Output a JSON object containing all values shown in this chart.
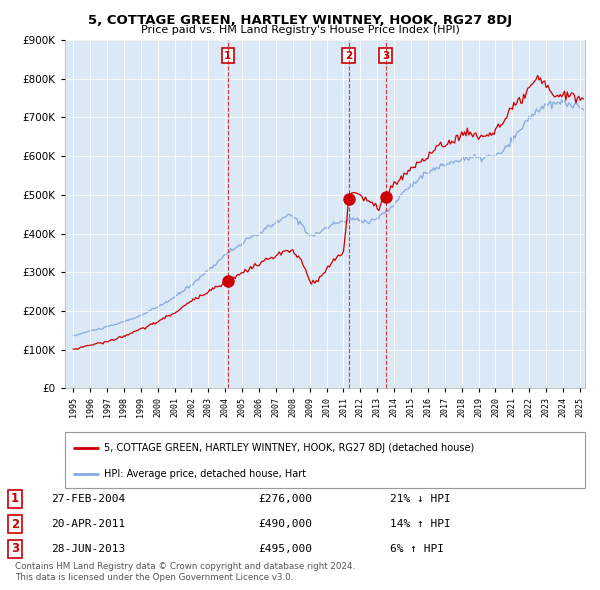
{
  "title": "5, COTTAGE GREEN, HARTLEY WINTNEY, HOOK, RG27 8DJ",
  "subtitle": "Price paid vs. HM Land Registry's House Price Index (HPI)",
  "legend_red": "5, COTTAGE GREEN, HARTLEY WINTNEY, HOOK, RG27 8DJ (detached house)",
  "legend_blue": "HPI: Average price, detached house, Hart",
  "footer1": "Contains HM Land Registry data © Crown copyright and database right 2024.",
  "footer2": "This data is licensed under the Open Government Licence v3.0.",
  "transactions": [
    {
      "num": 1,
      "date": "27-FEB-2004",
      "date_val": 2004.15,
      "price": 276000,
      "pct": "21%",
      "dir": "↓"
    },
    {
      "num": 2,
      "date": "20-APR-2011",
      "date_val": 2011.3,
      "price": 490000,
      "pct": "14%",
      "dir": "↑"
    },
    {
      "num": 3,
      "date": "28-JUN-2013",
      "date_val": 2013.49,
      "price": 495000,
      "pct": "6%",
      "dir": "↑"
    }
  ],
  "red_color": "#cc0000",
  "blue_color": "#88aadd",
  "bg_color": "#dbe8f5",
  "ylim": [
    0,
    900000
  ],
  "xlim_start": 1994.5,
  "xlim_end": 2025.3,
  "blue_anchors": [
    [
      1995.0,
      135000
    ],
    [
      1996.0,
      148000
    ],
    [
      1997.0,
      158000
    ],
    [
      1998.0,
      172000
    ],
    [
      1999.0,
      188000
    ],
    [
      2000.0,
      210000
    ],
    [
      2001.0,
      235000
    ],
    [
      2002.0,
      268000
    ],
    [
      2003.0,
      305000
    ],
    [
      2004.0,
      345000
    ],
    [
      2004.5,
      360000
    ],
    [
      2005.0,
      375000
    ],
    [
      2005.5,
      388000
    ],
    [
      2006.0,
      400000
    ],
    [
      2006.5,
      415000
    ],
    [
      2007.0,
      428000
    ],
    [
      2007.5,
      440000
    ],
    [
      2007.8,
      448000
    ],
    [
      2008.0,
      445000
    ],
    [
      2008.5,
      425000
    ],
    [
      2009.0,
      395000
    ],
    [
      2009.5,
      400000
    ],
    [
      2010.0,
      415000
    ],
    [
      2010.5,
      425000
    ],
    [
      2011.0,
      432000
    ],
    [
      2011.5,
      438000
    ],
    [
      2012.0,
      435000
    ],
    [
      2012.5,
      430000
    ],
    [
      2013.0,
      440000
    ],
    [
      2013.5,
      455000
    ],
    [
      2014.0,
      475000
    ],
    [
      2014.5,
      505000
    ],
    [
      2015.0,
      525000
    ],
    [
      2015.5,
      545000
    ],
    [
      2016.0,
      558000
    ],
    [
      2016.5,
      568000
    ],
    [
      2017.0,
      578000
    ],
    [
      2017.5,
      585000
    ],
    [
      2018.0,
      592000
    ],
    [
      2018.5,
      595000
    ],
    [
      2019.0,
      595000
    ],
    [
      2019.5,
      598000
    ],
    [
      2020.0,
      600000
    ],
    [
      2020.5,
      615000
    ],
    [
      2021.0,
      640000
    ],
    [
      2021.5,
      670000
    ],
    [
      2022.0,
      700000
    ],
    [
      2022.5,
      720000
    ],
    [
      2023.0,
      730000
    ],
    [
      2023.5,
      735000
    ],
    [
      2024.0,
      738000
    ],
    [
      2024.5,
      735000
    ],
    [
      2025.2,
      720000
    ]
  ],
  "red_anchors": [
    [
      1995.0,
      100000
    ],
    [
      1996.0,
      112000
    ],
    [
      1997.0,
      120000
    ],
    [
      1998.0,
      135000
    ],
    [
      1999.0,
      152000
    ],
    [
      2000.0,
      172000
    ],
    [
      2001.0,
      195000
    ],
    [
      2002.0,
      225000
    ],
    [
      2003.0,
      252000
    ],
    [
      2003.5,
      262000
    ],
    [
      2004.0,
      272000
    ],
    [
      2004.15,
      276000
    ],
    [
      2004.5,
      285000
    ],
    [
      2005.0,
      298000
    ],
    [
      2005.5,
      310000
    ],
    [
      2006.0,
      322000
    ],
    [
      2006.5,
      332000
    ],
    [
      2007.0,
      342000
    ],
    [
      2007.3,
      348000
    ],
    [
      2007.5,
      352000
    ],
    [
      2007.8,
      358000
    ],
    [
      2008.0,
      352000
    ],
    [
      2008.5,
      330000
    ],
    [
      2009.0,
      278000
    ],
    [
      2009.3,
      272000
    ],
    [
      2009.5,
      280000
    ],
    [
      2010.0,
      305000
    ],
    [
      2010.5,
      335000
    ],
    [
      2010.8,
      345000
    ],
    [
      2011.0,
      350000
    ],
    [
      2011.3,
      490000
    ],
    [
      2011.5,
      505000
    ],
    [
      2011.8,
      512000
    ],
    [
      2012.0,
      500000
    ],
    [
      2012.3,
      488000
    ],
    [
      2012.6,
      478000
    ],
    [
      2012.9,
      470000
    ],
    [
      2013.0,
      465000
    ],
    [
      2013.49,
      495000
    ],
    [
      2013.7,
      510000
    ],
    [
      2014.0,
      528000
    ],
    [
      2014.5,
      548000
    ],
    [
      2015.0,
      568000
    ],
    [
      2015.5,
      585000
    ],
    [
      2016.0,
      600000
    ],
    [
      2016.5,
      618000
    ],
    [
      2017.0,
      632000
    ],
    [
      2017.5,
      642000
    ],
    [
      2018.0,
      655000
    ],
    [
      2018.5,
      660000
    ],
    [
      2019.0,
      650000
    ],
    [
      2019.5,
      655000
    ],
    [
      2020.0,
      665000
    ],
    [
      2020.5,
      690000
    ],
    [
      2021.0,
      720000
    ],
    [
      2021.5,
      745000
    ],
    [
      2022.0,
      768000
    ],
    [
      2022.3,
      790000
    ],
    [
      2022.5,
      800000
    ],
    [
      2023.0,
      780000
    ],
    [
      2023.3,
      768000
    ],
    [
      2023.5,
      760000
    ],
    [
      2024.0,
      758000
    ],
    [
      2024.5,
      755000
    ],
    [
      2025.2,
      748000
    ]
  ]
}
